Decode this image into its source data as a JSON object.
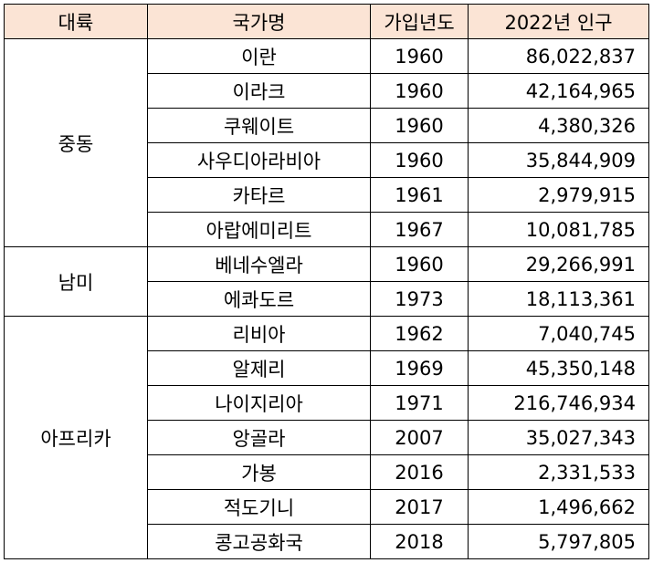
{
  "table": {
    "headers": [
      "대륙",
      "국가명",
      "가입년도",
      "2022년 인구"
    ],
    "groups": [
      {
        "region": "중동",
        "rows": [
          {
            "country": "이란",
            "year": "1960",
            "population": "86,022,837"
          },
          {
            "country": "이라크",
            "year": "1960",
            "population": "42,164,965"
          },
          {
            "country": "쿠웨이트",
            "year": "1960",
            "population": "4,380,326"
          },
          {
            "country": "사우디아라비아",
            "year": "1960",
            "population": "35,844,909"
          },
          {
            "country": "카타르",
            "year": "1961",
            "population": "2,979,915"
          },
          {
            "country": "아랍에미리트",
            "year": "1967",
            "population": "10,081,785"
          }
        ]
      },
      {
        "region": "남미",
        "rows": [
          {
            "country": "베네수엘라",
            "year": "1960",
            "population": "29,266,991"
          },
          {
            "country": "에콰도르",
            "year": "1973",
            "population": "18,113,361"
          }
        ]
      },
      {
        "region": "아프리카",
        "rows": [
          {
            "country": "리비아",
            "year": "1962",
            "population": "7,040,745"
          },
          {
            "country": "알제리",
            "year": "1969",
            "population": "45,350,148"
          },
          {
            "country": "나이지리아",
            "year": "1971",
            "population": "216,746,934"
          },
          {
            "country": "앙골라",
            "year": "2007",
            "population": "35,027,343"
          },
          {
            "country": "가봉",
            "year": "2016",
            "population": "2,331,533"
          },
          {
            "country": "적도기니",
            "year": "2017",
            "population": "1,496,662"
          },
          {
            "country": "콩고공화국",
            "year": "2018",
            "population": "5,797,805"
          }
        ]
      }
    ]
  }
}
